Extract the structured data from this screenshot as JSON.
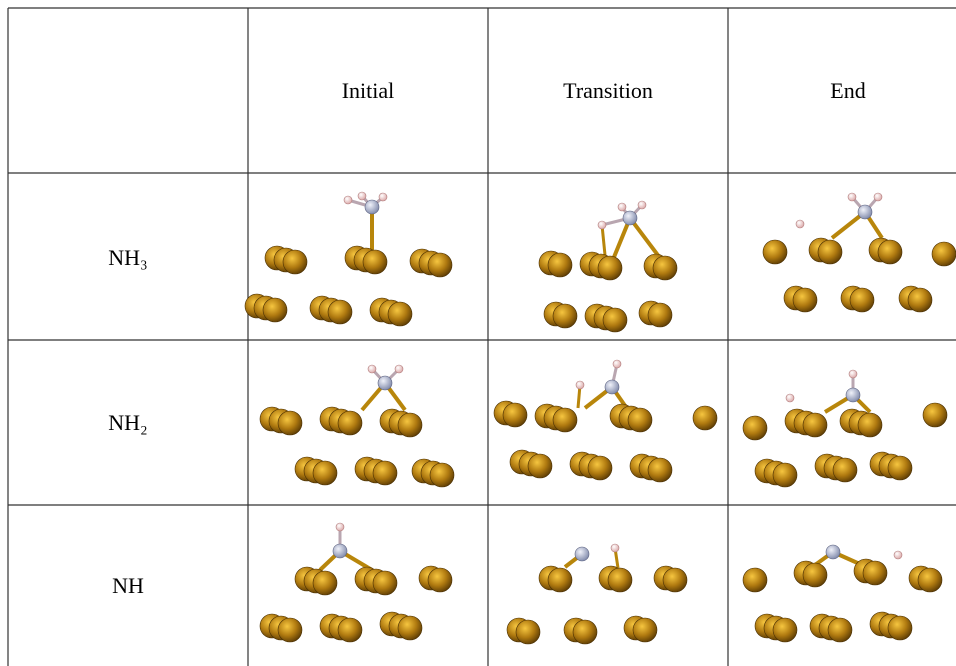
{
  "table": {
    "header": [
      "Initial",
      "Transition",
      "End"
    ],
    "rows": [
      [
        "NH₃"
      ],
      [
        "NH₂"
      ],
      [
        "NH"
      ]
    ]
  }
}
